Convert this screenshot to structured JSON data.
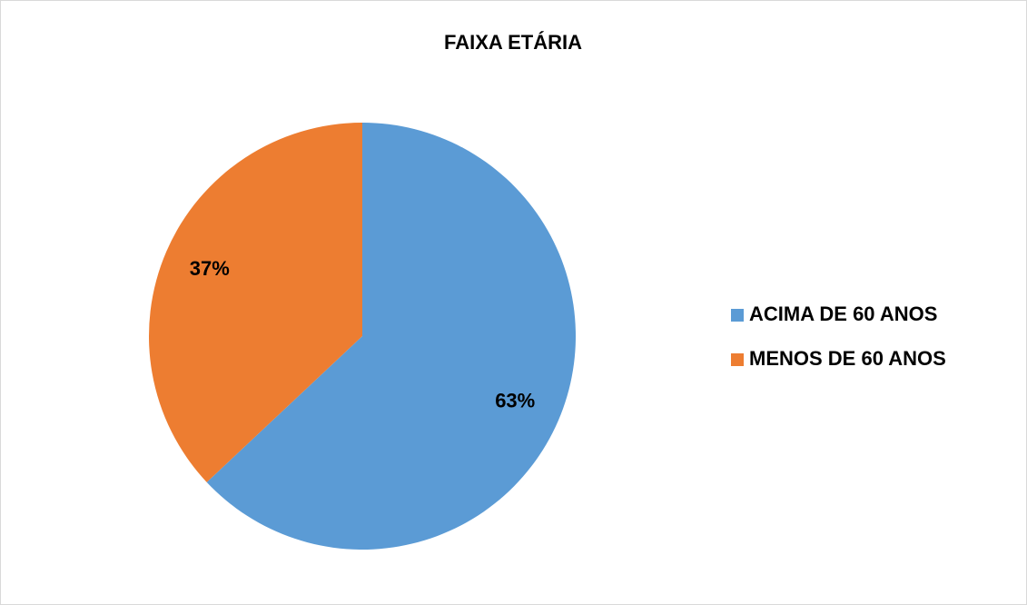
{
  "chart_data": {
    "type": "pie",
    "title": "FAIXA ETÁRIA",
    "categories": [
      "ACIMA DE 60 ANOS",
      "MENOS DE 60 ANOS"
    ],
    "values": [
      63,
      37
    ],
    "value_labels": [
      "63%",
      "37%"
    ],
    "colors": [
      "#5b9bd5",
      "#ed7d31"
    ],
    "legend": "right"
  }
}
